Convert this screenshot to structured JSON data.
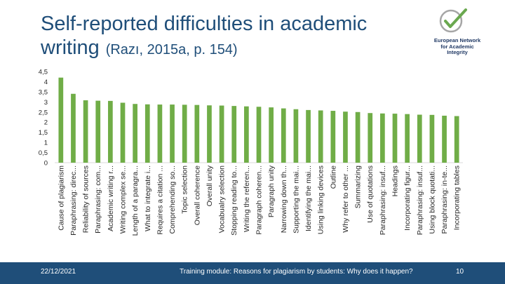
{
  "slide": {
    "title": "Self-reported difficulties in academic writing",
    "citation": "(Razı, 2015a, p. 154)"
  },
  "logo": {
    "lines": [
      "European Network",
      "for Academic",
      "Integrity"
    ]
  },
  "footer": {
    "date": "22/12/2021",
    "module": "Training module: Reasons for plagiarism by students: Why does it happen?",
    "page": "10"
  },
  "colors": {
    "title": "#1f4e79",
    "bar": "#70ad47",
    "axis": "#d9d9d9",
    "text": "#262626",
    "footer": "#1f4e79",
    "logo_accent": "#6aa84f",
    "logo_gray": "#a6a6a6"
  },
  "chart_data": {
    "type": "bar",
    "ylim": [
      0,
      4.5
    ],
    "yticks": [
      "0",
      "0,5",
      "1",
      "1,5",
      "2",
      "2,5",
      "3",
      "3,5",
      "4",
      "4,5"
    ],
    "grid": false,
    "legend": "none",
    "categories": [
      "Cause of plagiarism",
      "Paraphrasing: direc...",
      "Reliability of sources",
      "Paraphrasing: com...",
      "Academic writing r...",
      "Writing complex se...",
      "Length of a paragra...",
      "What to integrate i...",
      "Requires a citation ...",
      "Comprehending so...",
      "Topic selection",
      "Overall coherence",
      "Overall unity",
      "Vocabualry selection",
      "Stopping reading to...",
      "Writing the referen...",
      "Paragraph coheren...",
      "Paragraph unity",
      "Narrowing down th...",
      "Supporting the mai...",
      "Identifying the mai...",
      "Using linking devices",
      "Outline",
      "Why refer to other ...",
      "Summarizing",
      "Use of quotations",
      "Paraphrasing: insuf...",
      "Headings",
      "Incorporating figur...",
      "Paraphrasing: insuf...",
      "Using block quotati...",
      "Paraphrasing: in-te...",
      "Incorporating tables"
    ],
    "values": [
      4.2,
      3.4,
      3.08,
      3.06,
      3.05,
      2.96,
      2.9,
      2.88,
      2.87,
      2.87,
      2.86,
      2.85,
      2.83,
      2.82,
      2.8,
      2.78,
      2.76,
      2.73,
      2.68,
      2.64,
      2.6,
      2.58,
      2.56,
      2.52,
      2.5,
      2.45,
      2.43,
      2.42,
      2.4,
      2.37,
      2.36,
      2.32,
      2.3
    ]
  }
}
